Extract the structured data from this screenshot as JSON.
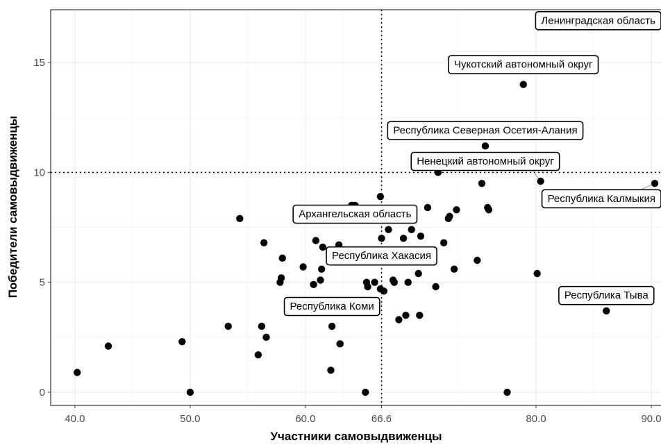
{
  "chart_data": {
    "type": "scatter",
    "xlabel": "Участники самовыдвиженцы",
    "ylabel": "Победители самовыдвиженцы",
    "xlim": [
      37.9,
      90.9
    ],
    "ylim": [
      -0.6,
      17.4
    ],
    "x_ticks": [
      {
        "value": 40,
        "label": "40.0"
      },
      {
        "value": 50,
        "label": "50.0"
      },
      {
        "value": 60,
        "label": "60.0"
      },
      {
        "value": 66.6,
        "label": "66.6"
      },
      {
        "value": 80,
        "label": "80.0"
      },
      {
        "value": 90,
        "label": "90.0"
      }
    ],
    "y_ticks": [
      {
        "value": 0,
        "label": "0"
      },
      {
        "value": 5,
        "label": "5"
      },
      {
        "value": 10,
        "label": "10"
      },
      {
        "value": 15,
        "label": "15"
      }
    ],
    "reference_lines": {
      "x": 66.6,
      "y": 10,
      "style": "dotted"
    },
    "grid": true,
    "point_color": "#000000",
    "points": [
      {
        "x": 40.2,
        "y": 0.9
      },
      {
        "x": 42.9,
        "y": 2.1
      },
      {
        "x": 49.3,
        "y": 2.3
      },
      {
        "x": 50.0,
        "y": 0.0
      },
      {
        "x": 53.3,
        "y": 3.0
      },
      {
        "x": 54.3,
        "y": 7.9
      },
      {
        "x": 55.9,
        "y": 1.7
      },
      {
        "x": 56.2,
        "y": 3.0
      },
      {
        "x": 56.6,
        "y": 2.5
      },
      {
        "x": 56.4,
        "y": 6.8
      },
      {
        "x": 57.8,
        "y": 5.0
      },
      {
        "x": 57.9,
        "y": 5.2
      },
      {
        "x": 58.0,
        "y": 6.1
      },
      {
        "x": 59.8,
        "y": 5.7
      },
      {
        "x": 60.7,
        "y": 4.9
      },
      {
        "x": 60.9,
        "y": 6.9
      },
      {
        "x": 61.3,
        "y": 5.1
      },
      {
        "x": 61.4,
        "y": 5.6
      },
      {
        "x": 61.5,
        "y": 6.6
      },
      {
        "x": 62.2,
        "y": 1.0
      },
      {
        "x": 62.3,
        "y": 3.0
      },
      {
        "x": 63.0,
        "y": 2.2
      },
      {
        "x": 62.9,
        "y": 6.7
      },
      {
        "x": 64.0,
        "y": 8.5
      },
      {
        "x": 64.3,
        "y": 8.5
      },
      {
        "x": 65.2,
        "y": 0.0
      },
      {
        "x": 65.3,
        "y": 5.0
      },
      {
        "x": 65.4,
        "y": 4.8
      },
      {
        "x": 66.0,
        "y": 5.0
      },
      {
        "x": 66.5,
        "y": 8.9
      },
      {
        "x": 66.6,
        "y": 7.0
      },
      {
        "x": 66.5,
        "y": 4.7
      },
      {
        "x": 66.8,
        "y": 4.6
      },
      {
        "x": 67.2,
        "y": 7.4
      },
      {
        "x": 67.6,
        "y": 5.1
      },
      {
        "x": 67.7,
        "y": 5.0
      },
      {
        "x": 68.1,
        "y": 3.3
      },
      {
        "x": 68.5,
        "y": 7.0
      },
      {
        "x": 68.7,
        "y": 3.5
      },
      {
        "x": 68.9,
        "y": 5.0
      },
      {
        "x": 69.2,
        "y": 7.4
      },
      {
        "x": 69.8,
        "y": 5.4
      },
      {
        "x": 69.9,
        "y": 3.5
      },
      {
        "x": 70.0,
        "y": 7.1
      },
      {
        "x": 70.6,
        "y": 8.4
      },
      {
        "x": 71.3,
        "y": 4.8
      },
      {
        "x": 71.5,
        "y": 10.0
      },
      {
        "x": 72.0,
        "y": 6.8
      },
      {
        "x": 72.4,
        "y": 7.9
      },
      {
        "x": 72.5,
        "y": 8.0
      },
      {
        "x": 72.9,
        "y": 5.6
      },
      {
        "x": 73.1,
        "y": 8.3
      },
      {
        "x": 74.9,
        "y": 6.0
      },
      {
        "x": 75.3,
        "y": 9.5
      },
      {
        "x": 75.6,
        "y": 11.2
      },
      {
        "x": 75.8,
        "y": 8.4
      },
      {
        "x": 75.9,
        "y": 8.3
      },
      {
        "x": 77.5,
        "y": 0.0
      },
      {
        "x": 78.9,
        "y": 14.0
      },
      {
        "x": 80.1,
        "y": 5.4
      },
      {
        "x": 80.4,
        "y": 9.6
      },
      {
        "x": 86.1,
        "y": 3.7
      },
      {
        "x": 90.3,
        "y": 9.5
      }
    ],
    "annotations": [
      {
        "text": "Ленинградская область",
        "x": 90.9,
        "y": 16.9
      },
      {
        "text": "Чукотский автономный округ",
        "x": 78.9,
        "y": 14.9
      },
      {
        "text": "Республика Северная Осетия-Алания",
        "x": 75.6,
        "y": 11.9
      },
      {
        "text": "Ненецкий автономный округ",
        "x": 75.6,
        "y": 10.5
      },
      {
        "text": "Республика Калмыкия",
        "x": 90.3,
        "y": 8.8
      },
      {
        "text": "Архангельская область",
        "x": 64.3,
        "y": 8.1
      },
      {
        "text": "Республика Хакасия",
        "x": 66.6,
        "y": 6.2
      },
      {
        "text": "Республика Тыва",
        "x": 86.1,
        "y": 4.4
      },
      {
        "text": "Республика Коми",
        "x": 62.3,
        "y": 3.9
      }
    ]
  }
}
